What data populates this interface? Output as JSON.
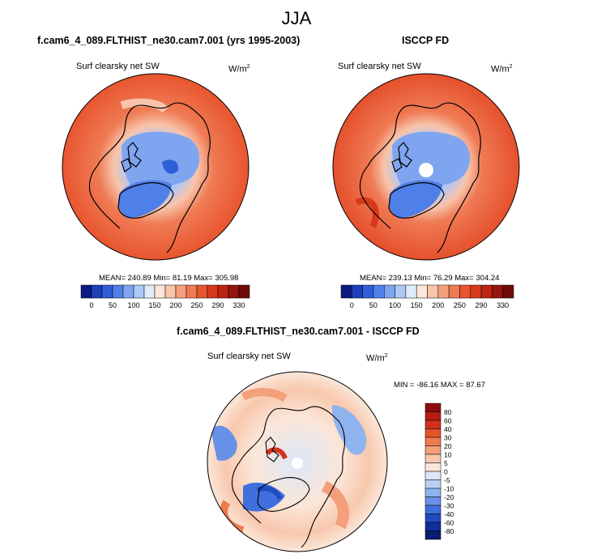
{
  "figure": {
    "title": "JJA"
  },
  "panels": {
    "model": {
      "title": "f.cam6_4_089.FLTHIST_ne30.cam7.001 (yrs 1995-2003)",
      "variable": "Surf clearsky net SW",
      "units_prefix": "W/m",
      "units_exp": "2",
      "stats": {
        "mean": "240.89",
        "min": "81.19",
        "max": "305.98"
      },
      "stats_text": "MEAN= 240.89  Min=  81.19  Max= 305.98"
    },
    "obs": {
      "title": "ISCCP FD",
      "variable": "Surf clearsky net SW",
      "units_prefix": "W/m",
      "units_exp": "2",
      "stats": {
        "mean": "239.13",
        "min": "76.29",
        "max": "304.24"
      },
      "stats_text": "MEAN= 239.13  Min=  76.29  Max= 304.24"
    },
    "diff": {
      "title": "f.cam6_4_089.FLTHIST_ne30.cam7.001 - ISCCP FD",
      "variable": "Surf clearsky net SW",
      "units_prefix": "W/m",
      "units_exp": "2",
      "stats": {
        "min": "-86.16",
        "max": "87.67"
      },
      "stats_text": "MIN = -86.16 MAX =  87.67"
    }
  },
  "colorbars": {
    "abs": {
      "labels": [
        "0",
        "50",
        "100",
        "150",
        "200",
        "250",
        "290",
        "330"
      ],
      "colors": [
        "#0a1a80",
        "#1f3fb8",
        "#2f5fd8",
        "#4f7fe8",
        "#7fa5f0",
        "#aec8f5",
        "#dfeafa",
        "#fbe6d9",
        "#f8c4aa",
        "#f4a07f",
        "#ef7b55",
        "#e8552e",
        "#d8391c",
        "#bd2412",
        "#96150d",
        "#6e0b08"
      ]
    },
    "diff": {
      "labels": [
        "80",
        "60",
        "40",
        "30",
        "20",
        "10",
        "5",
        "0",
        "-5",
        "-10",
        "-20",
        "-30",
        "-40",
        "-60",
        "-80"
      ],
      "colors": [
        "#8a0f0a",
        "#b41d12",
        "#d2321c",
        "#e6532b",
        "#ef7a52",
        "#f49f7c",
        "#f8c8ad",
        "#fbe6d8",
        "#dbe7f8",
        "#b9d0f4",
        "#8fb3ee",
        "#6791e6",
        "#3f6fdc",
        "#1f4bbd",
        "#0f2f98",
        "#0a1d6e"
      ]
    }
  }
}
